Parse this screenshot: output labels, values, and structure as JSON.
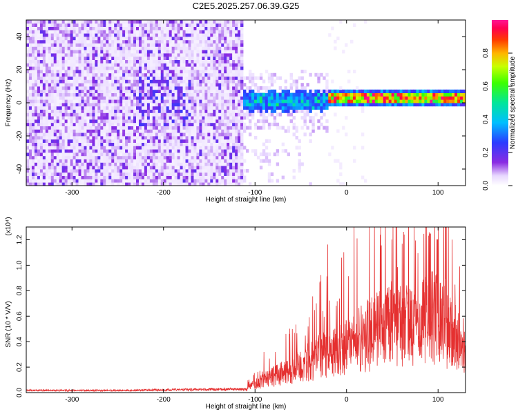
{
  "title": "C2E5.2025.257.06.39.G25",
  "colors": {
    "snr_line": "#e53030",
    "axis": "#000000",
    "colormap": [
      "#ffffff",
      "#e7d4ff",
      "#b98cff",
      "#8a2be2",
      "#5a1fff",
      "#2b3bff",
      "#00bfff",
      "#00e6a8",
      "#00ff3c",
      "#b4ff00",
      "#ffd500",
      "#ff7a00",
      "#ff0000",
      "#ff1493"
    ]
  },
  "chart_data": [
    {
      "type": "heatmap",
      "title": "C2E5.2025.257.06.39.G25",
      "xlabel": "Height of straight line (km)",
      "ylabel": "Frequency (Hz)",
      "xlim": [
        -350,
        130
      ],
      "ylim": [
        -50,
        50
      ],
      "xticks": [
        -300,
        -200,
        -100,
        0,
        100
      ],
      "yticks": [
        -40,
        -20,
        0,
        20,
        40
      ],
      "colorbar": {
        "label": "Normalized spectral amplitude",
        "range": [
          0,
          1
        ],
        "ticks": [
          "0.0",
          "0.2",
          "0.4",
          "0.6",
          "0.8"
        ]
      },
      "regions": [
        {
          "x_range": [
            -350,
            -115
          ],
          "description": "broadband purple noise",
          "amplitude": 0.15
        },
        {
          "x_range": [
            -115,
            -20
          ],
          "freq_center": 0,
          "freq_halfwidth": 6,
          "amplitude": 0.35
        },
        {
          "x_range": [
            -20,
            130
          ],
          "freq_center": 2,
          "freq_halfwidth": 2,
          "amplitude": 0.9
        }
      ]
    },
    {
      "type": "line",
      "xlabel": "Height of straight line (km)",
      "ylabel": "SNR (10 * V/V)",
      "y_multiplier": "(x10⁴)",
      "xlim": [
        -350,
        130
      ],
      "ylim": [
        0,
        1.3
      ],
      "xticks": [
        -300,
        -200,
        -100,
        0,
        100
      ],
      "yticks": [
        "0.0",
        "0.2",
        "0.4",
        "0.6",
        "0.8",
        "1.0",
        "1.2"
      ],
      "series": [
        {
          "name": "SNR",
          "envelope_x": [
            -350,
            -250,
            -150,
            -110,
            -100,
            -80,
            -60,
            -40,
            -20,
            -5,
            0,
            20,
            40,
            60,
            80,
            95,
            100,
            110,
            120,
            130
          ],
          "envelope_y": [
            0.02,
            0.02,
            0.03,
            0.03,
            0.1,
            0.18,
            0.25,
            0.35,
            0.45,
            0.45,
            0.5,
            0.62,
            0.72,
            0.75,
            0.75,
            0.85,
            0.8,
            0.7,
            0.6,
            0.4
          ]
        }
      ]
    }
  ]
}
